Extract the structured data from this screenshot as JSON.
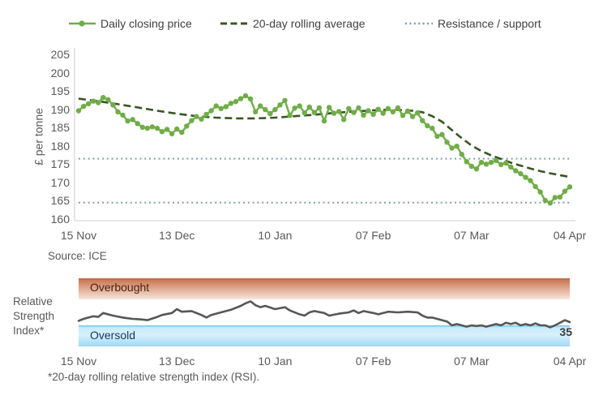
{
  "legend": {
    "items": [
      {
        "label": "Daily closing price",
        "color": "#70AD47",
        "style": "line-marker"
      },
      {
        "label": "20-day rolling average",
        "color": "#375623",
        "style": "dashed"
      },
      {
        "label": "Resistance / support",
        "color": "#7F9CB9",
        "style": "dotted"
      }
    ]
  },
  "price_chart": {
    "y_axis_title": "£ per tonne",
    "y_ticks": [
      205,
      200,
      195,
      190,
      185,
      180,
      175,
      170,
      165,
      160
    ],
    "x_ticks": [
      "15 Nov",
      "13 Dec",
      "10 Jan",
      "07 Feb",
      "07 Mar",
      "04 Apr"
    ],
    "source": "Source: ICE",
    "axis_color": "#D9D9D9",
    "tick_color": "#595959"
  },
  "rsi_chart": {
    "left_label": "Relative\nStrength\nIndex*",
    "overbought_label": "Overbought",
    "oversold_label": "Oversold",
    "last_value_label": "35",
    "x_ticks": [
      "15 Nov",
      "13 Dec",
      "10 Jan",
      "07 Feb",
      "07 Mar",
      "04 Apr"
    ],
    "footnote": "*20-day rolling relative strength index (RSI).",
    "line_color": "#575757",
    "overbought_text_color": "#4A2511",
    "oversold_text_color": "#17375E"
  },
  "chart_data": [
    {
      "type": "line",
      "title": "Daily price vs 20-day rolling average",
      "ylabel": "£ per tonne",
      "ylim": [
        160,
        205
      ],
      "x_range": [
        "15 Nov",
        "04 Apr"
      ],
      "x_tick_labels": [
        "15 Nov",
        "13 Dec",
        "10 Jan",
        "07 Feb",
        "07 Mar",
        "04 Apr"
      ],
      "resistance_level": 176.5,
      "support_level": 164.5,
      "grid": false,
      "legend_position": "top",
      "series": [
        {
          "name": "Daily closing price",
          "color": "#70AD47",
          "marker": "circle",
          "x_note": "index 0-100 maps linearly from 15 Nov to 04 Apr (weekdays)",
          "values": [
            189.6,
            190.8,
            191.5,
            192.2,
            191.8,
            193.2,
            192.6,
            191.2,
            189.3,
            188.4,
            186.8,
            187.2,
            186.1,
            185.1,
            184.8,
            185.2,
            184.8,
            183.9,
            184.5,
            183.3,
            184.6,
            183.7,
            185.4,
            186.9,
            188.0,
            187.3,
            188.6,
            189.6,
            190.9,
            190.2,
            190.7,
            191.6,
            192.1,
            192.9,
            193.7,
            192.8,
            189.3,
            190.9,
            189.9,
            188.8,
            189.9,
            191.2,
            192.4,
            188.3,
            190.3,
            190.9,
            189.0,
            190.6,
            189.1,
            190.4,
            186.8,
            190.5,
            188.9,
            189.4,
            187.2,
            190.2,
            189.1,
            190.4,
            188.4,
            189.6,
            188.6,
            190.0,
            188.9,
            190.2,
            189.3,
            190.4,
            188.3,
            189.5,
            188.0,
            189.0,
            186.9,
            185.5,
            184.8,
            182.6,
            183.1,
            181.0,
            179.4,
            179.9,
            177.7,
            175.7,
            174.4,
            173.7,
            175.5,
            175.0,
            175.5,
            176.0,
            174.9,
            175.3,
            174.2,
            173.2,
            172.4,
            171.4,
            170.5,
            168.9,
            167.4,
            165.1,
            164.4,
            165.9,
            166.0,
            167.6,
            168.8
          ]
        },
        {
          "name": "20-day rolling average",
          "color": "#375623",
          "style": "dashed",
          "points": [
            [
              0,
              192.9
            ],
            [
              4,
              192.2
            ],
            [
              8,
              191.4
            ],
            [
              12,
              190.5
            ],
            [
              16,
              189.6
            ],
            [
              20,
              188.8
            ],
            [
              24,
              188.1
            ],
            [
              28,
              187.7
            ],
            [
              32,
              187.5
            ],
            [
              36,
              187.5
            ],
            [
              40,
              187.7
            ],
            [
              44,
              188.1
            ],
            [
              48,
              188.5
            ],
            [
              52,
              189.0
            ],
            [
              56,
              189.4
            ],
            [
              60,
              189.7
            ],
            [
              64,
              189.9
            ],
            [
              68,
              189.6
            ],
            [
              70,
              189.2
            ],
            [
              72,
              188.1
            ],
            [
              74,
              186.6
            ],
            [
              76,
              184.3
            ],
            [
              78,
              182.1
            ],
            [
              80,
              180.1
            ],
            [
              82,
              178.6
            ],
            [
              84,
              177.4
            ],
            [
              86,
              176.4
            ],
            [
              88,
              175.4
            ],
            [
              90,
              174.6
            ],
            [
              92,
              173.8
            ],
            [
              94,
              173.1
            ],
            [
              96,
              172.5
            ],
            [
              98,
              172.0
            ],
            [
              100,
              171.5
            ]
          ]
        },
        {
          "name": "Resistance / support",
          "color": "#7F9CB9",
          "style": "dotted",
          "levels": [
            176.5,
            164.5
          ]
        }
      ]
    },
    {
      "type": "line",
      "title": "20-day rolling relative strength index (RSI)",
      "ylim": [
        0,
        100
      ],
      "overbought_zone": [
        70,
        100
      ],
      "oversold_zone": [
        0,
        30
      ],
      "last_value": 35,
      "line_color": "#575757",
      "points": [
        [
          0,
          37
        ],
        [
          1,
          40
        ],
        [
          3,
          44
        ],
        [
          4,
          43
        ],
        [
          5,
          49
        ],
        [
          7,
          45
        ],
        [
          9,
          42
        ],
        [
          11,
          40
        ],
        [
          13,
          39
        ],
        [
          14,
          38
        ],
        [
          16,
          43
        ],
        [
          17,
          46
        ],
        [
          19,
          49
        ],
        [
          20,
          55
        ],
        [
          21,
          51
        ],
        [
          23,
          52
        ],
        [
          24,
          49
        ],
        [
          25,
          46
        ],
        [
          26,
          42
        ],
        [
          27,
          46
        ],
        [
          29,
          50
        ],
        [
          31,
          54
        ],
        [
          33,
          60
        ],
        [
          34,
          64
        ],
        [
          35,
          67
        ],
        [
          36,
          61
        ],
        [
          37,
          58
        ],
        [
          38,
          60
        ],
        [
          40,
          55
        ],
        [
          42,
          58
        ],
        [
          43,
          53
        ],
        [
          45,
          47
        ],
        [
          46,
          45
        ],
        [
          47,
          50
        ],
        [
          48,
          52
        ],
        [
          50,
          49
        ],
        [
          51,
          45
        ],
        [
          53,
          48
        ],
        [
          55,
          50
        ],
        [
          56,
          53
        ],
        [
          57,
          49
        ],
        [
          58,
          52
        ],
        [
          60,
          49
        ],
        [
          61,
          47
        ],
        [
          63,
          51
        ],
        [
          65,
          50
        ],
        [
          67,
          51
        ],
        [
          69,
          50
        ],
        [
          70,
          45
        ],
        [
          71,
          42
        ],
        [
          72,
          42
        ],
        [
          73,
          40
        ],
        [
          74,
          38
        ],
        [
          75,
          36
        ],
        [
          76,
          30
        ],
        [
          77,
          32
        ],
        [
          78,
          30
        ],
        [
          79,
          28
        ],
        [
          80,
          30
        ],
        [
          81,
          29
        ],
        [
          82,
          30
        ],
        [
          83,
          28
        ],
        [
          84,
          30
        ],
        [
          85,
          32
        ],
        [
          86,
          30
        ],
        [
          87,
          34
        ],
        [
          88,
          32
        ],
        [
          89,
          34
        ],
        [
          90,
          30
        ],
        [
          91,
          32
        ],
        [
          92,
          30
        ],
        [
          93,
          33
        ],
        [
          94,
          30
        ],
        [
          95,
          30
        ],
        [
          96,
          27
        ],
        [
          97,
          30
        ],
        [
          98,
          34
        ],
        [
          99,
          38
        ],
        [
          100,
          35
        ]
      ]
    }
  ]
}
